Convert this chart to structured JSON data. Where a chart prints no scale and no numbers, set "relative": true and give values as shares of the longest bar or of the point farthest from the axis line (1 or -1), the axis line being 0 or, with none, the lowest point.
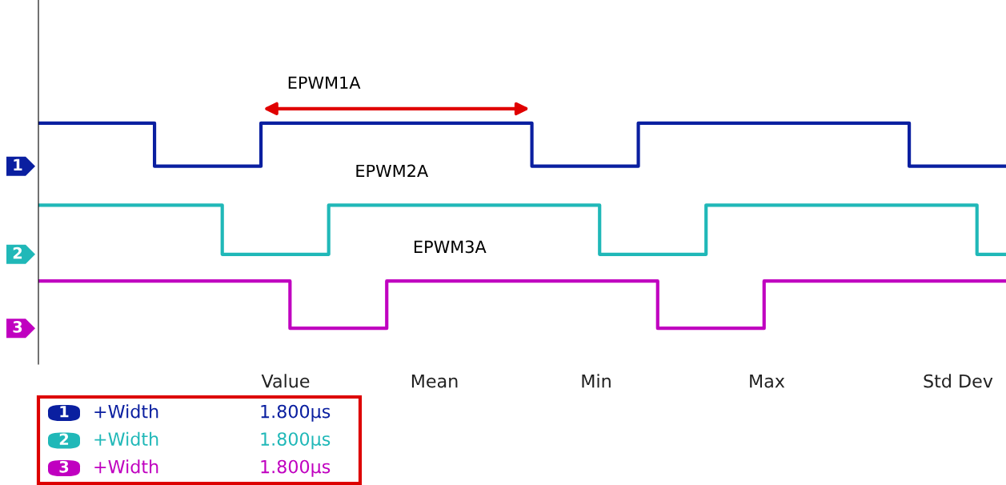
{
  "chart_data": {
    "type": "step",
    "relative": true,
    "categories": [
      null,
      null,
      null,
      null,
      null,
      null,
      null,
      null,
      null,
      null,
      null,
      null,
      null,
      null,
      null,
      null,
      null,
      null,
      null,
      null,
      null,
      null,
      null,
      null,
      null,
      null,
      null,
      null,
      null,
      null,
      null,
      null,
      null,
      null,
      null,
      null,
      null,
      null,
      null,
      null,
      null,
      null,
      null,
      null,
      null,
      null,
      null,
      null,
      null,
      null,
      null,
      null,
      null,
      null,
      null,
      null,
      null,
      null,
      null,
      null,
      null,
      null,
      null,
      null,
      null,
      null,
      null,
      null,
      null,
      null,
      null,
      null,
      null,
      null,
      null,
      null,
      null,
      null,
      null,
      null,
      null,
      null,
      null,
      null,
      null,
      null,
      null,
      null,
      null,
      null,
      null,
      null,
      null,
      null,
      null,
      null,
      null,
      null,
      null,
      null,
      null
    ],
    "series": [
      {
        "name": "EPWM1A",
        "color": "#0a1fa0",
        "values": [
          1,
          1,
          1,
          1,
          1,
          1,
          1,
          1,
          1,
          1,
          1,
          1,
          0.79,
          0.79,
          0.79,
          0.79,
          0.79,
          0.79,
          0.79,
          0.79,
          0.79,
          0.79,
          0.79,
          1,
          1,
          1,
          1,
          1,
          1,
          1,
          1,
          1,
          1,
          1,
          1,
          1,
          1,
          1,
          1,
          1,
          1,
          1,
          1,
          1,
          1,
          1,
          1,
          1,
          1,
          1,
          1,
          0.79,
          0.79,
          0.79,
          0.79,
          0.79,
          0.79,
          0.79,
          0.79,
          0.79,
          0.79,
          0.79,
          1,
          1,
          1,
          1,
          1,
          1,
          1,
          1,
          1,
          1,
          1,
          1,
          1,
          1,
          1,
          1,
          1,
          1,
          1,
          1,
          1,
          1,
          1,
          1,
          1,
          1,
          1,
          1,
          0.79,
          0.79,
          0.79,
          0.79,
          0.79,
          0.79,
          0.79,
          0.79,
          0.79,
          0.79,
          0.79
        ]
      },
      {
        "name": "EPWM2A",
        "color": "#20b8b8",
        "values": [
          0.6,
          0.6,
          0.6,
          0.6,
          0.6,
          0.6,
          0.6,
          0.6,
          0.6,
          0.6,
          0.6,
          0.6,
          0.6,
          0.6,
          0.6,
          0.6,
          0.6,
          0.6,
          0.6,
          0.36,
          0.36,
          0.36,
          0.36,
          0.36,
          0.36,
          0.36,
          0.36,
          0.36,
          0.36,
          0.36,
          0.6,
          0.6,
          0.6,
          0.6,
          0.6,
          0.6,
          0.6,
          0.6,
          0.6,
          0.6,
          0.6,
          0.6,
          0.6,
          0.6,
          0.6,
          0.6,
          0.6,
          0.6,
          0.6,
          0.6,
          0.6,
          0.6,
          0.6,
          0.6,
          0.6,
          0.6,
          0.6,
          0.6,
          0.36,
          0.36,
          0.36,
          0.36,
          0.36,
          0.36,
          0.36,
          0.36,
          0.36,
          0.36,
          0.36,
          0.6,
          0.6,
          0.6,
          0.6,
          0.6,
          0.6,
          0.6,
          0.6,
          0.6,
          0.6,
          0.6,
          0.6,
          0.6,
          0.6,
          0.6,
          0.6,
          0.6,
          0.6,
          0.6,
          0.6,
          0.6,
          0.6,
          0.6,
          0.6,
          0.6,
          0.6,
          0.6,
          0.6,
          0.36,
          0.36,
          0.36,
          0.36
        ]
      },
      {
        "name": "EPWM3A",
        "color": "#c000c0",
        "values": [
          0.23,
          0.23,
          0.23,
          0.23,
          0.23,
          0.23,
          0.23,
          0.23,
          0.23,
          0.23,
          0.23,
          0.23,
          0.23,
          0.23,
          0.23,
          0.23,
          0.23,
          0.23,
          0.23,
          0.23,
          0.23,
          0.23,
          0.23,
          0.23,
          0.23,
          0.23,
          0,
          0,
          0,
          0,
          0,
          0,
          0,
          0,
          0,
          0,
          0.23,
          0.23,
          0.23,
          0.23,
          0.23,
          0.23,
          0.23,
          0.23,
          0.23,
          0.23,
          0.23,
          0.23,
          0.23,
          0.23,
          0.23,
          0.23,
          0.23,
          0.23,
          0.23,
          0.23,
          0.23,
          0.23,
          0.23,
          0.23,
          0.23,
          0.23,
          0.23,
          0.23,
          0,
          0,
          0,
          0,
          0,
          0,
          0,
          0,
          0,
          0,
          0,
          0.23,
          0.23,
          0.23,
          0.23,
          0.23,
          0.23,
          0.23,
          0.23,
          0.23,
          0.23,
          0.23,
          0.23,
          0.23,
          0.23,
          0.23,
          0.23,
          0.23,
          0.23,
          0.23,
          0.23,
          0.23,
          0.23,
          0.23,
          0.23,
          0.23,
          0.23
        ]
      }
    ],
    "annotations": [
      "Value",
      "Mean",
      "Min",
      "Max",
      "Std Dev",
      "1",
      "+Width",
      "1.800µs",
      "2",
      "+Width",
      "1.800µs",
      "3",
      "+Width",
      "1.800µs",
      "1",
      "2",
      "3"
    ],
    "legend": false
  }
}
